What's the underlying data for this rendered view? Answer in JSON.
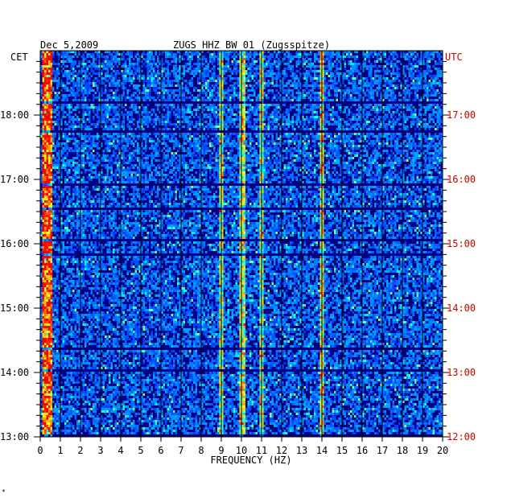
{
  "chart_data": {
    "type": "heatmap",
    "title_date": "Dec 5,2009",
    "title_station": "ZUGS HHZ BW 01 (Zugsspitze)",
    "left_timezone": "CET",
    "right_timezone": "UTC",
    "xlabel": "FREQUENCY (HZ)",
    "xlim": [
      0,
      20
    ],
    "x_ticks": [
      "0",
      "1",
      "2",
      "3",
      "4",
      "5",
      "6",
      "7",
      "8",
      "9",
      "10",
      "11",
      "12",
      "13",
      "14",
      "15",
      "16",
      "17",
      "18",
      "19",
      "20"
    ],
    "y_ticks_cet": [
      "18:00",
      "17:00",
      "16:00",
      "15:00",
      "14:00",
      "13:00"
    ],
    "y_ticks_utc": [
      "17:00",
      "16:00",
      "15:00",
      "14:00",
      "13:00",
      "12:00"
    ],
    "time_range_cet": [
      "13:00",
      "18:35"
    ],
    "grid": true,
    "colormap": [
      "#00007f",
      "#0000ff",
      "#00a0ff",
      "#00ffff",
      "#ffff00",
      "#ff8000",
      "#ff0000"
    ],
    "features": [
      {
        "frequency_hz": [
          0.1,
          0.6
        ],
        "relative_power": 0.85
      },
      {
        "frequency_hz": [
          8.9,
          9.1
        ],
        "relative_power": 0.45
      },
      {
        "frequency_hz": [
          9.9,
          10.2
        ],
        "relative_power": 0.5
      },
      {
        "frequency_hz": [
          10.9,
          11.1
        ],
        "relative_power": 0.45
      },
      {
        "frequency_hz": [
          13.9,
          14.1
        ],
        "relative_power": 0.55
      }
    ]
  },
  "footer_mark": "*"
}
